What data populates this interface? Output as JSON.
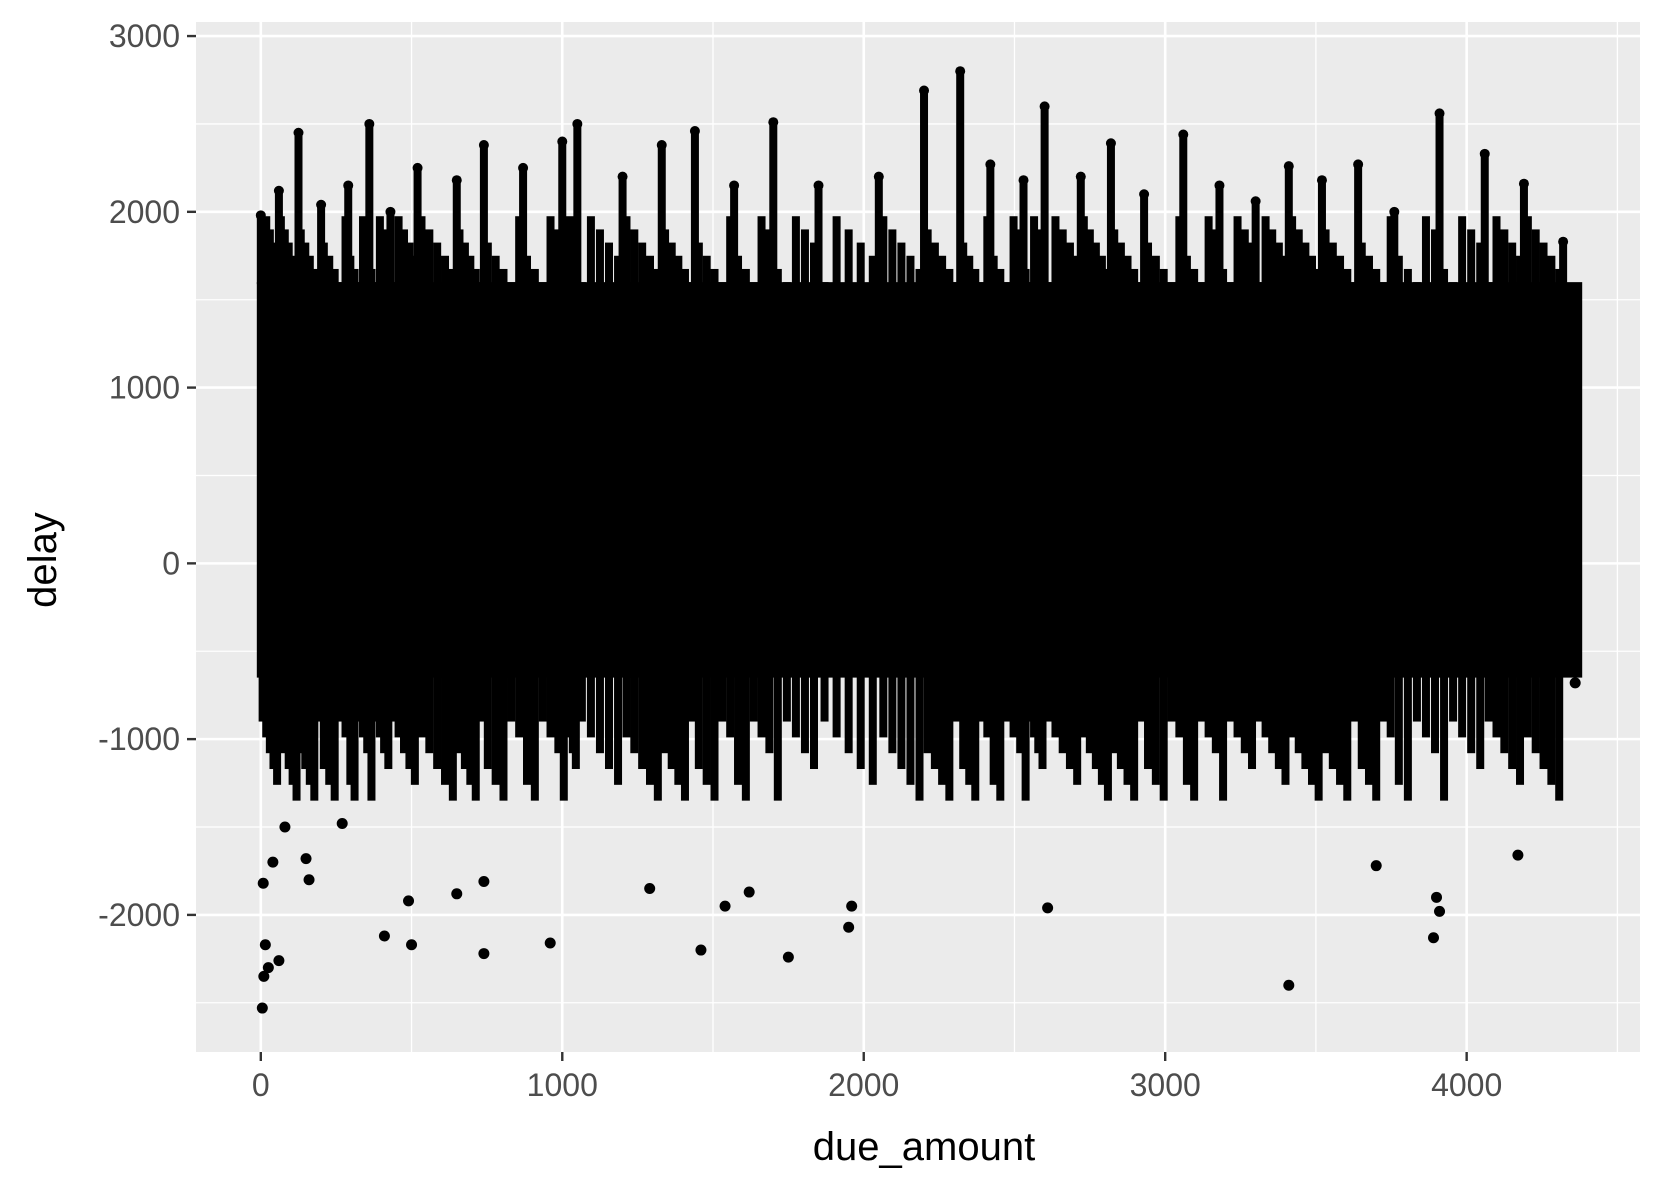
{
  "chart_data": {
    "type": "scatter",
    "title": "",
    "xlabel": "due_amount",
    "ylabel": "delay",
    "xlim": [
      -215,
      4575
    ],
    "ylim": [
      -2780,
      3080
    ],
    "x_ticks": [
      0,
      1000,
      2000,
      3000,
      4000
    ],
    "x_tick_labels": [
      "0",
      "1000",
      "2000",
      "3000",
      "4000"
    ],
    "y_ticks": [
      -2000,
      -1000,
      0,
      1000,
      2000,
      3000
    ],
    "y_tick_labels": [
      "-2000",
      "-1000",
      "0",
      "1000",
      "2000",
      "3000"
    ],
    "grid": true,
    "legend": "none",
    "point_color": "#000000",
    "panel_background": "#ebebeb",
    "grid_color": "#ffffff",
    "core_band": {
      "x_range": [
        0,
        4370
      ],
      "y_range": [
        -650,
        1600
      ],
      "description_values": "dense overplotted mass of points"
    },
    "spike_points": [
      {
        "x": 0,
        "y": 1980
      },
      {
        "x": 60,
        "y": 2120
      },
      {
        "x": 125,
        "y": 2450
      },
      {
        "x": 200,
        "y": 2040
      },
      {
        "x": 290,
        "y": 2150
      },
      {
        "x": 360,
        "y": 2500
      },
      {
        "x": 430,
        "y": 2000
      },
      {
        "x": 520,
        "y": 2250
      },
      {
        "x": 650,
        "y": 2180
      },
      {
        "x": 740,
        "y": 2380
      },
      {
        "x": 870,
        "y": 2250
      },
      {
        "x": 1000,
        "y": 2400
      },
      {
        "x": 1050,
        "y": 2500
      },
      {
        "x": 1200,
        "y": 2200
      },
      {
        "x": 1330,
        "y": 2380
      },
      {
        "x": 1440,
        "y": 2460
      },
      {
        "x": 1570,
        "y": 2150
      },
      {
        "x": 1700,
        "y": 2510
      },
      {
        "x": 1850,
        "y": 2150
      },
      {
        "x": 2050,
        "y": 2200
      },
      {
        "x": 2200,
        "y": 2690
      },
      {
        "x": 2320,
        "y": 2800
      },
      {
        "x": 2420,
        "y": 2270
      },
      {
        "x": 2530,
        "y": 2180
      },
      {
        "x": 2600,
        "y": 2600
      },
      {
        "x": 2720,
        "y": 2200
      },
      {
        "x": 2820,
        "y": 2390
      },
      {
        "x": 2930,
        "y": 2100
      },
      {
        "x": 3060,
        "y": 2440
      },
      {
        "x": 3180,
        "y": 2150
      },
      {
        "x": 3300,
        "y": 2060
      },
      {
        "x": 3410,
        "y": 2260
      },
      {
        "x": 3520,
        "y": 2180
      },
      {
        "x": 3640,
        "y": 2270
      },
      {
        "x": 3760,
        "y": 2000
      },
      {
        "x": 3910,
        "y": 2560
      },
      {
        "x": 4060,
        "y": 2330
      },
      {
        "x": 4190,
        "y": 2160
      },
      {
        "x": 4320,
        "y": 1830
      }
    ],
    "outlier_points": [
      {
        "x": 5,
        "y": -2530
      },
      {
        "x": 10,
        "y": -2350
      },
      {
        "x": 25,
        "y": -2300
      },
      {
        "x": 60,
        "y": -2260
      },
      {
        "x": 15,
        "y": -2170
      },
      {
        "x": 8,
        "y": -1820
      },
      {
        "x": 40,
        "y": -1700
      },
      {
        "x": 80,
        "y": -1500
      },
      {
        "x": 150,
        "y": -1680
      },
      {
        "x": 160,
        "y": -1800
      },
      {
        "x": 270,
        "y": -1480
      },
      {
        "x": 410,
        "y": -2120
      },
      {
        "x": 500,
        "y": -2170
      },
      {
        "x": 490,
        "y": -1920
      },
      {
        "x": 650,
        "y": -1880
      },
      {
        "x": 740,
        "y": -2220
      },
      {
        "x": 740,
        "y": -1810
      },
      {
        "x": 960,
        "y": -2160
      },
      {
        "x": 1290,
        "y": -1850
      },
      {
        "x": 1460,
        "y": -2200
      },
      {
        "x": 1540,
        "y": -1950
      },
      {
        "x": 1620,
        "y": -1870
      },
      {
        "x": 1750,
        "y": -2240
      },
      {
        "x": 1950,
        "y": -2070
      },
      {
        "x": 1960,
        "y": -1950
      },
      {
        "x": 2610,
        "y": -1960
      },
      {
        "x": 3410,
        "y": -2400
      },
      {
        "x": 3700,
        "y": -1720
      },
      {
        "x": 3890,
        "y": -2130
      },
      {
        "x": 3900,
        "y": -1900
      },
      {
        "x": 3910,
        "y": -1980
      },
      {
        "x": 4170,
        "y": -1660
      },
      {
        "x": 4360,
        "y": -680
      }
    ]
  }
}
